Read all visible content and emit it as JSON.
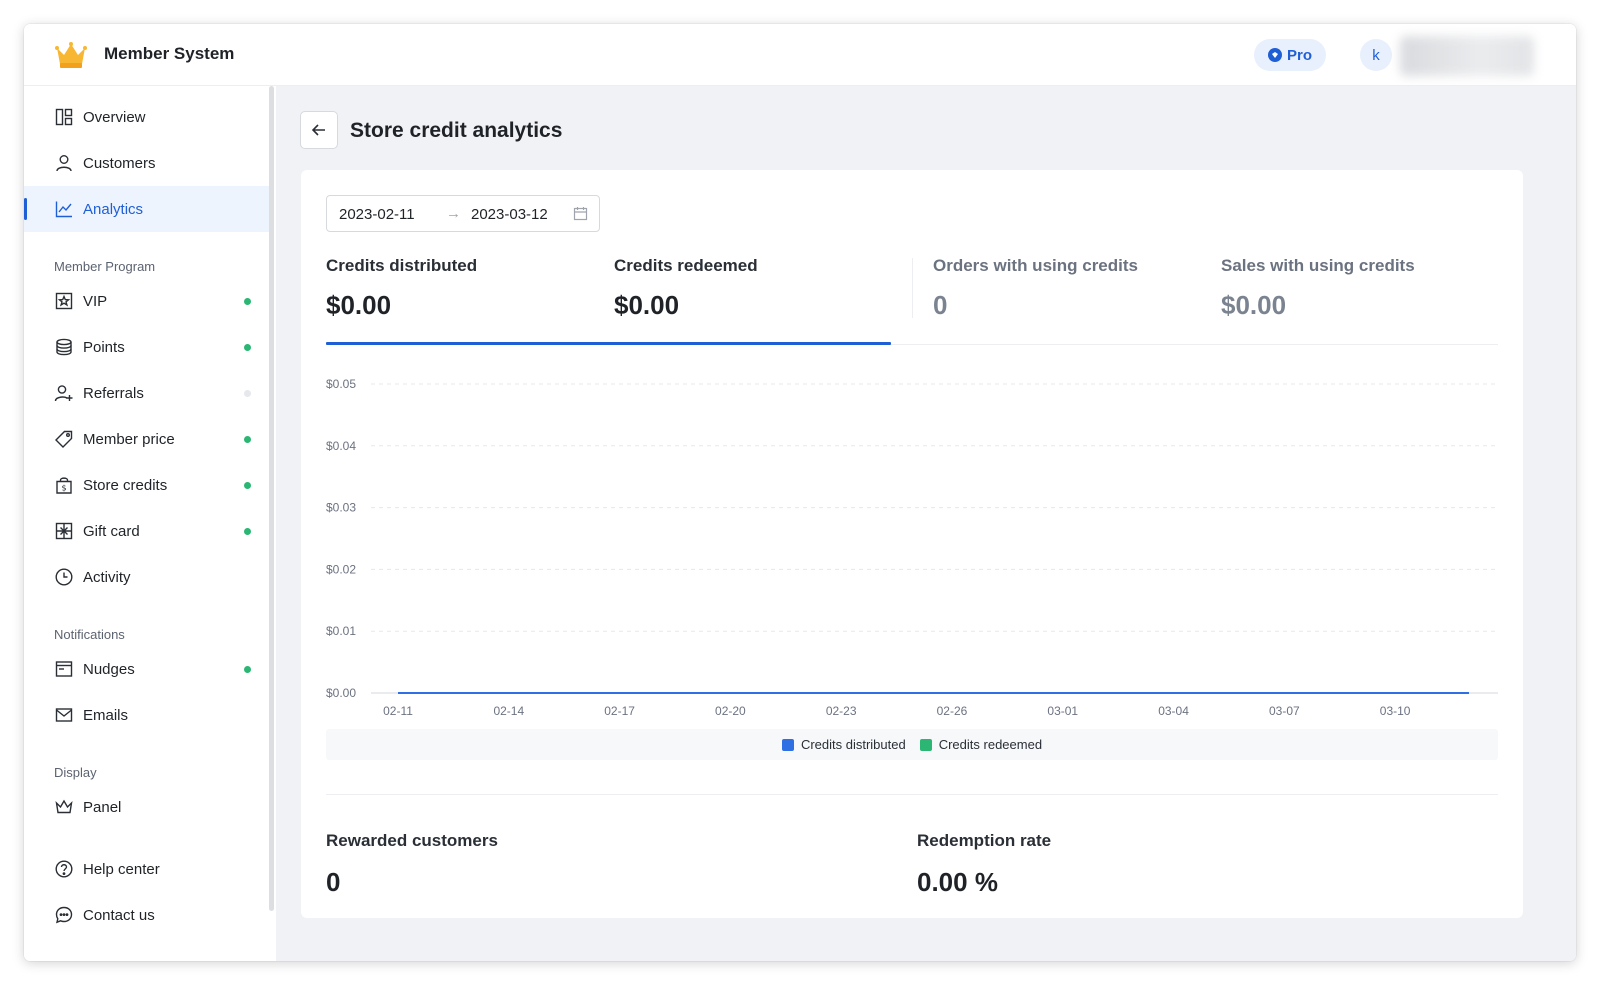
{
  "app": {
    "title": "Member System",
    "plan_badge": "Pro",
    "avatar_letter": "k"
  },
  "sidebar": {
    "items": [
      {
        "label": "Overview",
        "icon": "grid-icon"
      },
      {
        "label": "Customers",
        "icon": "user-icon"
      },
      {
        "label": "Analytics",
        "icon": "line-chart-icon",
        "active": true
      }
    ],
    "sections": {
      "member_program": {
        "label": "Member Program",
        "items": [
          {
            "label": "VIP",
            "icon": "vip-badge-icon",
            "status": "on"
          },
          {
            "label": "Points",
            "icon": "coins-icon",
            "status": "on"
          },
          {
            "label": "Referrals",
            "icon": "add-user-icon",
            "status": "off"
          },
          {
            "label": "Member price",
            "icon": "tag-icon",
            "status": "on"
          },
          {
            "label": "Store credits",
            "icon": "credit-bag-icon",
            "status": "on"
          },
          {
            "label": "Gift card",
            "icon": "gift-card-icon",
            "status": "on"
          },
          {
            "label": "Activity",
            "icon": "clock-icon"
          }
        ]
      },
      "notifications": {
        "label": "Notifications",
        "items": [
          {
            "label": "Nudges",
            "icon": "window-icon",
            "status": "on"
          },
          {
            "label": "Emails",
            "icon": "mail-icon"
          }
        ]
      },
      "display": {
        "label": "Display",
        "items": [
          {
            "label": "Panel",
            "icon": "crown-outline-icon"
          }
        ]
      }
    },
    "footer_items": [
      {
        "label": "Help center",
        "icon": "help-icon"
      },
      {
        "label": "Contact us",
        "icon": "chat-icon"
      }
    ]
  },
  "page": {
    "title": "Store credit analytics",
    "date_range": {
      "start": "2023-02-11",
      "separator": "→",
      "end": "2023-03-12"
    },
    "metrics": [
      {
        "label": "Credits distributed",
        "value": "$0.00",
        "selected": true
      },
      {
        "label": "Credits redeemed",
        "value": "$0.00",
        "selected": true
      },
      {
        "label": "Orders with using credits",
        "value": "0",
        "selected": false
      },
      {
        "label": "Sales with using credits",
        "value": "$0.00",
        "selected": false
      }
    ],
    "stats": [
      {
        "label": "Rewarded customers",
        "value": "0"
      },
      {
        "label": "Redemption rate",
        "value": "0.00 %"
      }
    ]
  },
  "colors": {
    "accent": "#1f5fd6",
    "series_distributed": "#2f6fe4",
    "series_redeemed": "#2bb673",
    "status_on": "#2bb673"
  },
  "chart_data": {
    "type": "line",
    "x_ticks": [
      "02-11",
      "02-14",
      "02-17",
      "02-20",
      "02-23",
      "02-26",
      "03-01",
      "03-04",
      "03-07",
      "03-10"
    ],
    "y_ticks": [
      "$0.05",
      "$0.04",
      "$0.03",
      "$0.02",
      "$0.01",
      "$0.00"
    ],
    "ylim": [
      0,
      0.05
    ],
    "x_start": "02-11",
    "x_end": "03-12",
    "grid": true,
    "legend_position": "bottom",
    "series": [
      {
        "name": "Credits distributed",
        "value": 0,
        "color": "#2f6fe4"
      },
      {
        "name": "Credits redeemed",
        "value": 0,
        "color": "#2bb673"
      }
    ]
  }
}
